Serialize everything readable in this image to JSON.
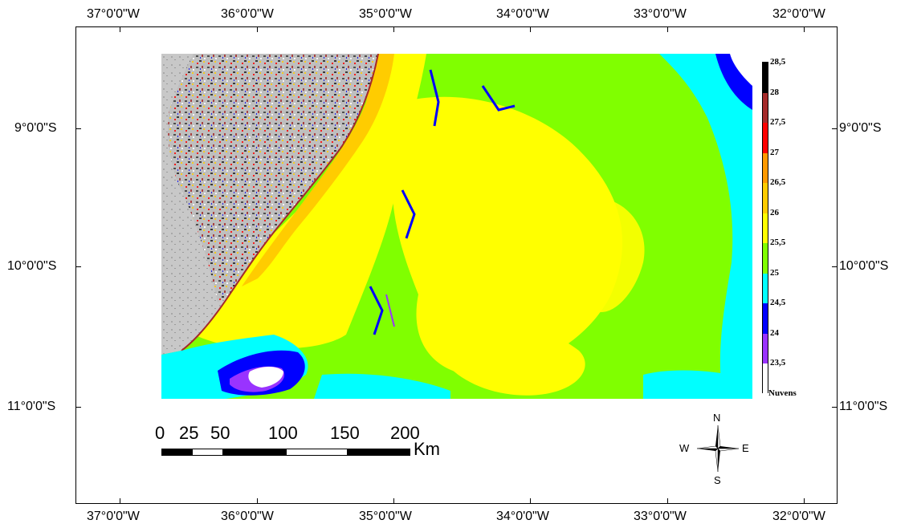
{
  "top_axis_labels": [
    "37°0'0\"W",
    "36°0'0\"W",
    "35°0'0\"W",
    "34°0'0\"W",
    "33°0'0\"W",
    "32°0'0\"W"
  ],
  "bottom_axis_labels": [
    "37°0'0\"W",
    "36°0'0\"W",
    "35°0'0\"W",
    "34°0'0\"W",
    "33°0'0\"W",
    "32°0'0\"W"
  ],
  "left_axis_labels": [
    "9°0'0\"S",
    "10°0'0\"S",
    "11°0'0\"S"
  ],
  "right_axis_labels": [
    "9°0'0\"S",
    "10°0'0\"S",
    "11°0'0\"S"
  ],
  "legend": {
    "items": [
      {
        "label": "28,5",
        "color": "#000000"
      },
      {
        "label": "28",
        "color": "#a52a2a"
      },
      {
        "label": "27,5",
        "color": "#ff0000"
      },
      {
        "label": "27",
        "color": "#ff9900"
      },
      {
        "label": "26,5",
        "color": "#ffcc00"
      },
      {
        "label": "26",
        "color": "#ffff00"
      },
      {
        "label": "25,5",
        "color": "#80ff00"
      },
      {
        "label": "25",
        "color": "#00ffff"
      },
      {
        "label": "24,5",
        "color": "#0000ff"
      },
      {
        "label": "24",
        "color": "#9933ff"
      },
      {
        "label": "23,5",
        "color": "#ffffff"
      }
    ],
    "clouds_label": "Nuvens"
  },
  "scale_bar": {
    "labels": [
      "0",
      "25",
      "50",
      "100",
      "150",
      "200"
    ],
    "unit": "Km"
  },
  "north_arrow": {
    "n": "N",
    "s": "S",
    "e": "E",
    "w": "W"
  },
  "colors": {
    "ocean_main": "#80ff00",
    "warm_patch": "#ffff00",
    "coastal_band": "#ffcc00",
    "cool_water": "#00ffff",
    "cold_water": "#0000ff",
    "coldest": "#9933ff",
    "land": "#bdbdbd"
  }
}
